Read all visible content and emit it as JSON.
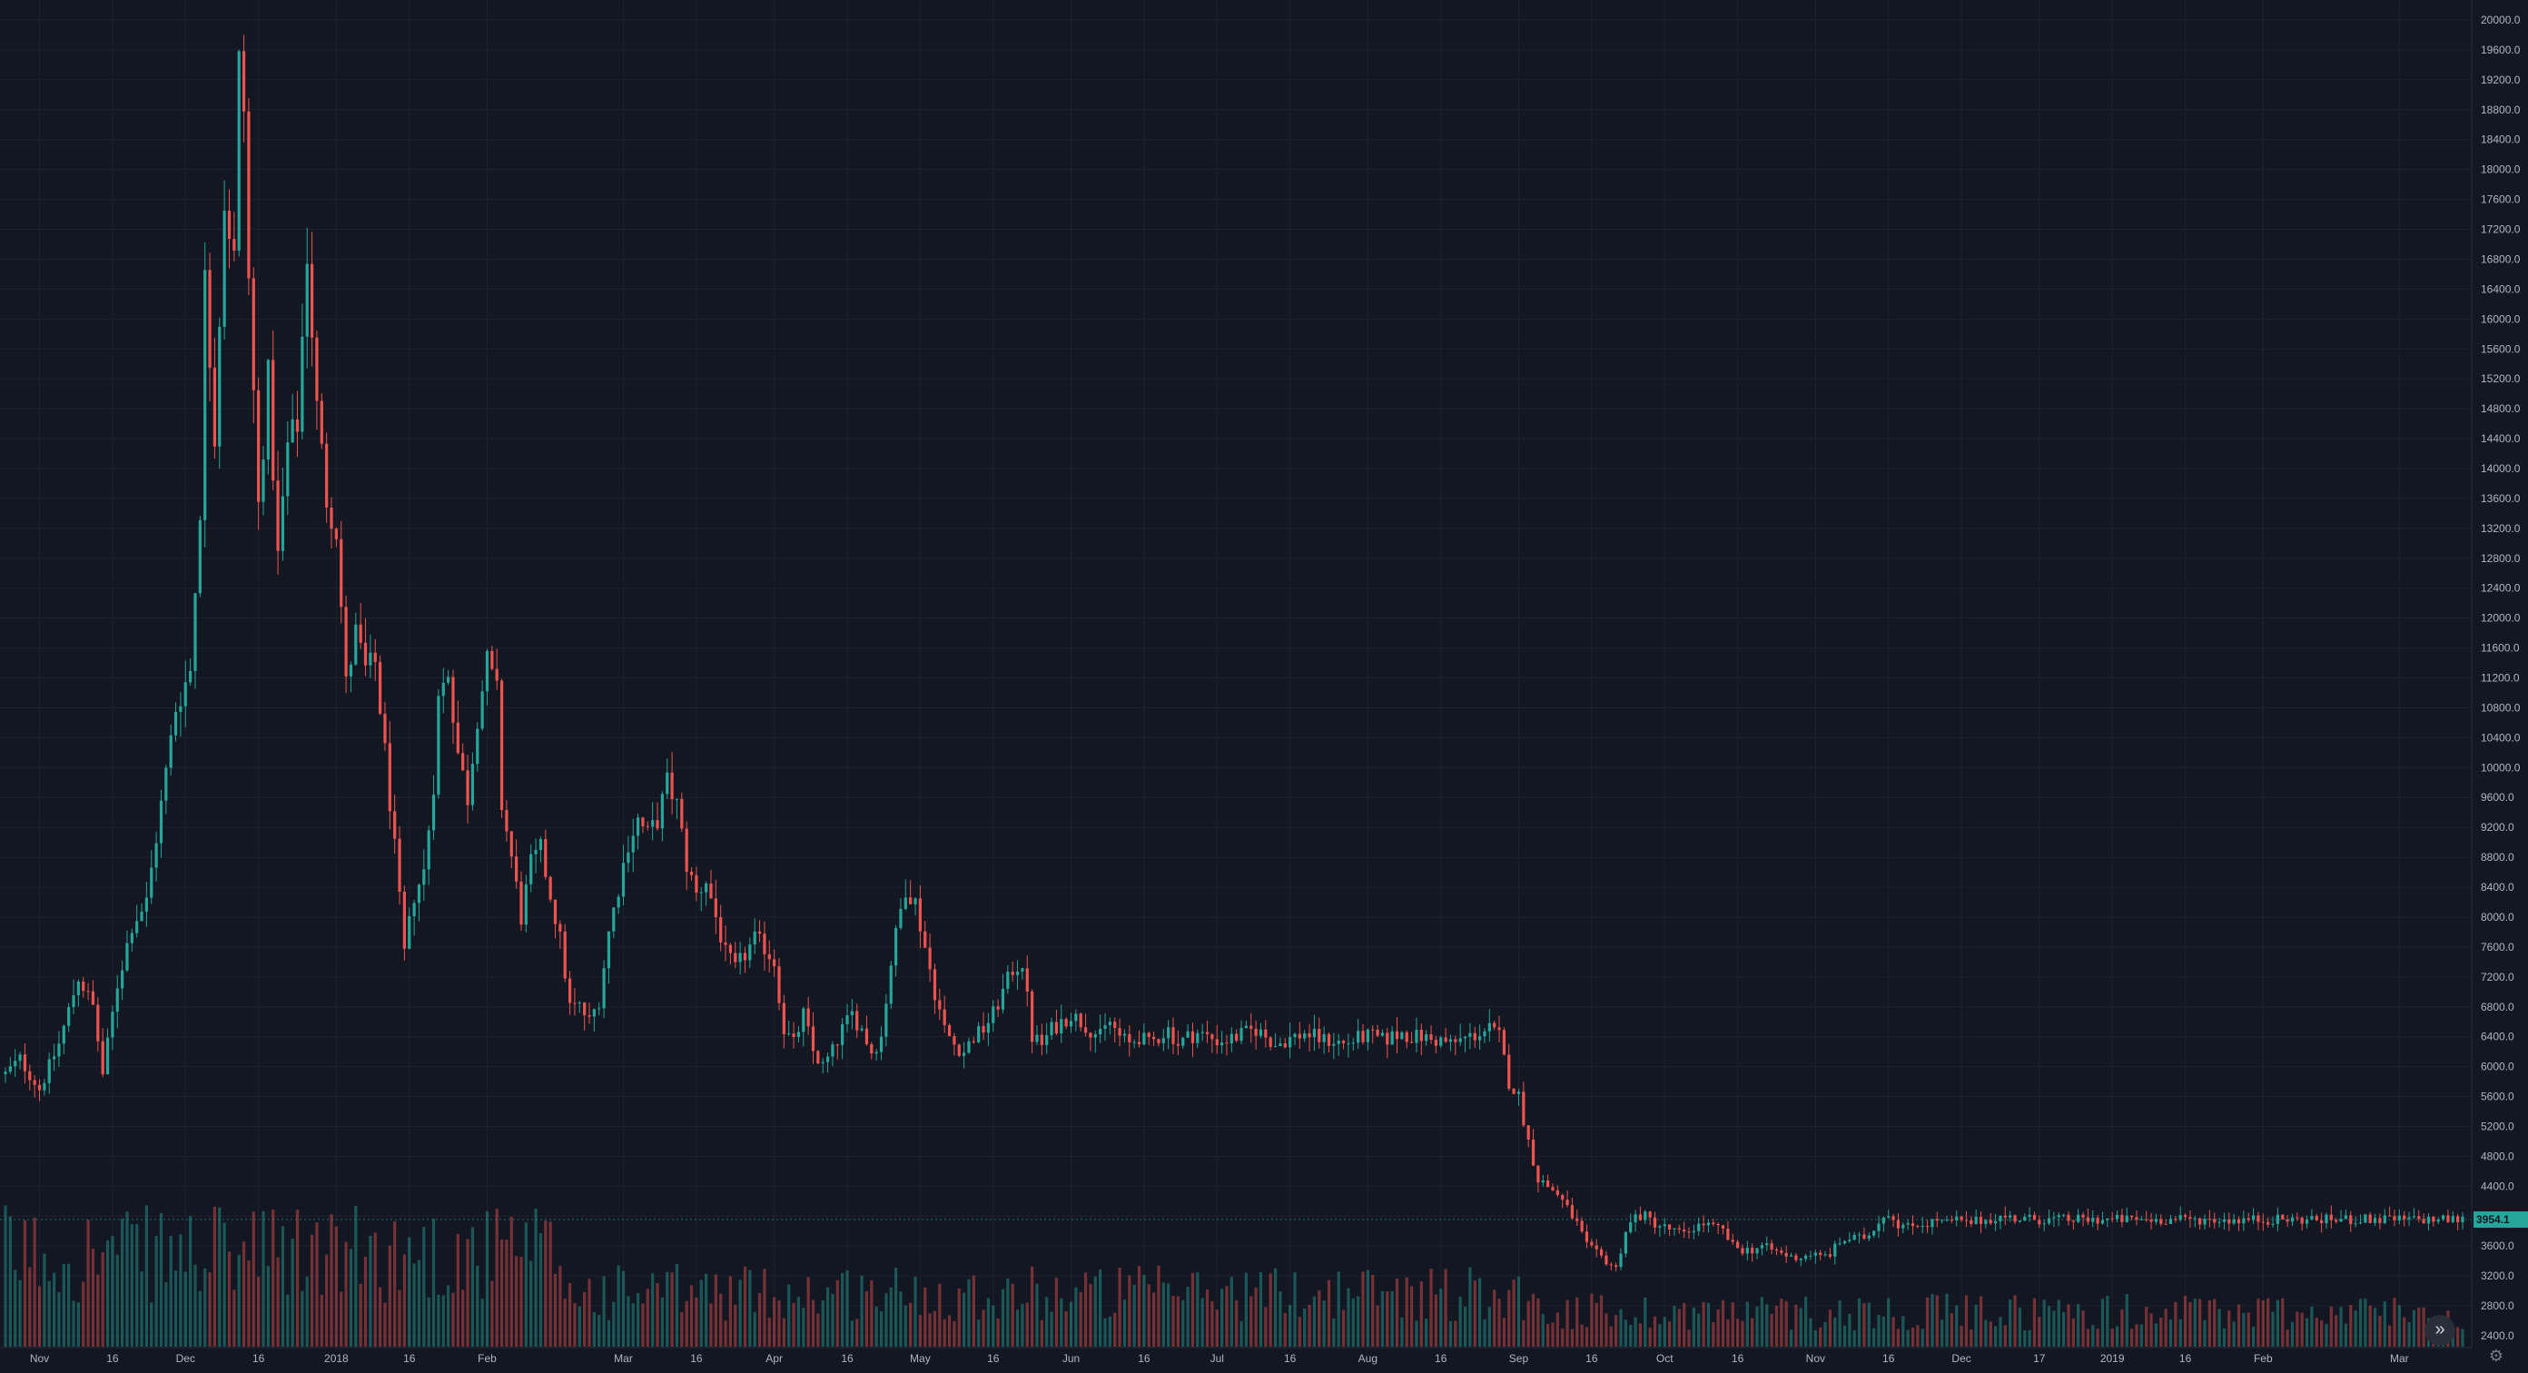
{
  "chart_data": {
    "type": "candlestick",
    "ylim": [
      2400,
      20000
    ],
    "y_ticks": [
      2400,
      2800,
      3200,
      3600,
      4000,
      4400,
      4800,
      5200,
      5600,
      6000,
      6400,
      6800,
      7200,
      7600,
      8000,
      8400,
      8800,
      9200,
      9600,
      10000,
      10400,
      10800,
      11200,
      11600,
      12000,
      12400,
      12800,
      13200,
      13600,
      14000,
      14400,
      14800,
      15200,
      15600,
      16000,
      16400,
      16800,
      17200,
      17600,
      18000,
      18400,
      18800,
      19200,
      19600,
      20000
    ],
    "x_ticks": [
      {
        "label": "Nov",
        "day": 22
      },
      {
        "label": "16",
        "day": 37
      },
      {
        "label": "Dec",
        "day": 52
      },
      {
        "label": "16",
        "day": 67
      },
      {
        "label": "2018",
        "day": 83
      },
      {
        "label": "16",
        "day": 98
      },
      {
        "label": "Feb",
        "day": 114
      },
      {
        "label": "Mar",
        "day": 142
      },
      {
        "label": "16",
        "day": 157
      },
      {
        "label": "Apr",
        "day": 173
      },
      {
        "label": "16",
        "day": 188
      },
      {
        "label": "May",
        "day": 203
      },
      {
        "label": "16",
        "day": 218
      },
      {
        "label": "Jun",
        "day": 234
      },
      {
        "label": "16",
        "day": 249
      },
      {
        "label": "Jul",
        "day": 264
      },
      {
        "label": "16",
        "day": 279
      },
      {
        "label": "Aug",
        "day": 295
      },
      {
        "label": "16",
        "day": 310
      },
      {
        "label": "Sep",
        "day": 326
      },
      {
        "label": "16",
        "day": 341
      },
      {
        "label": "Oct",
        "day": 356
      },
      {
        "label": "16",
        "day": 371
      },
      {
        "label": "Nov",
        "day": 387
      },
      {
        "label": "16",
        "day": 402
      },
      {
        "label": "Dec",
        "day": 417
      },
      {
        "label": "17",
        "day": 433
      },
      {
        "label": "2019",
        "day": 448
      },
      {
        "label": "16",
        "day": 463
      },
      {
        "label": "Feb",
        "day": 479
      },
      {
        "label": "Mar",
        "day": 507
      }
    ],
    "day_range": [
      15,
      520
    ],
    "anchors": [
      [
        15,
        5900
      ],
      [
        18,
        6100
      ],
      [
        22,
        5700
      ],
      [
        26,
        6300
      ],
      [
        30,
        7200
      ],
      [
        33,
        6800
      ],
      [
        35,
        5900
      ],
      [
        38,
        7100
      ],
      [
        41,
        7900
      ],
      [
        44,
        8200
      ],
      [
        47,
        9500
      ],
      [
        50,
        10800
      ],
      [
        53,
        11300
      ],
      [
        55,
        13500
      ],
      [
        56,
        16500
      ],
      [
        58,
        14500
      ],
      [
        60,
        17600
      ],
      [
        62,
        16800
      ],
      [
        63,
        19400
      ],
      [
        64,
        18800
      ],
      [
        65,
        16500
      ],
      [
        67,
        13500
      ],
      [
        69,
        15200
      ],
      [
        71,
        12800
      ],
      [
        73,
        14300
      ],
      [
        75,
        14600
      ],
      [
        77,
        16900
      ],
      [
        79,
        14800
      ],
      [
        81,
        13600
      ],
      [
        83,
        13200
      ],
      [
        85,
        11100
      ],
      [
        87,
        11800
      ],
      [
        89,
        11300
      ],
      [
        91,
        11400
      ],
      [
        93,
        10200
      ],
      [
        95,
        8900
      ],
      [
        97,
        7500
      ],
      [
        99,
        8300
      ],
      [
        101,
        8600
      ],
      [
        103,
        9800
      ],
      [
        104,
        10900
      ],
      [
        106,
        11300
      ],
      [
        108,
        10200
      ],
      [
        110,
        9600
      ],
      [
        112,
        10700
      ],
      [
        114,
        11400
      ],
      [
        116,
        11000
      ],
      [
        117,
        9500
      ],
      [
        119,
        8800
      ],
      [
        121,
        8000
      ],
      [
        123,
        8700
      ],
      [
        125,
        8900
      ],
      [
        127,
        8300
      ],
      [
        129,
        7700
      ],
      [
        131,
        6800
      ],
      [
        133,
        6800
      ],
      [
        135,
        6600
      ],
      [
        137,
        6900
      ],
      [
        139,
        7800
      ],
      [
        141,
        8400
      ],
      [
        143,
        9000
      ],
      [
        145,
        9300
      ],
      [
        147,
        9100
      ],
      [
        149,
        9300
      ],
      [
        151,
        9800
      ],
      [
        153,
        9500
      ],
      [
        155,
        8700
      ],
      [
        157,
        8300
      ],
      [
        159,
        8500
      ],
      [
        161,
        8000
      ],
      [
        163,
        7500
      ],
      [
        165,
        7300
      ],
      [
        167,
        7500
      ],
      [
        169,
        7700
      ],
      [
        171,
        7600
      ],
      [
        173,
        7400
      ],
      [
        175,
        6500
      ],
      [
        177,
        6300
      ],
      [
        179,
        6700
      ],
      [
        181,
        6200
      ],
      [
        183,
        6000
      ],
      [
        185,
        6200
      ],
      [
        187,
        6500
      ],
      [
        189,
        6700
      ],
      [
        191,
        6500
      ],
      [
        193,
        6200
      ],
      [
        195,
        6400
      ],
      [
        197,
        7400
      ],
      [
        199,
        8100
      ],
      [
        200,
        8400
      ],
      [
        202,
        8200
      ],
      [
        204,
        7600
      ],
      [
        206,
        7000
      ],
      [
        208,
        6500
      ],
      [
        210,
        6300
      ],
      [
        212,
        6200
      ],
      [
        214,
        6400
      ],
      [
        216,
        6500
      ],
      [
        218,
        6700
      ],
      [
        220,
        7000
      ],
      [
        222,
        7300
      ],
      [
        224,
        7400
      ],
      [
        226,
        6400
      ],
      [
        228,
        6300
      ],
      [
        230,
        6500
      ],
      [
        232,
        6600
      ],
      [
        234,
        6700
      ],
      [
        236,
        6600
      ],
      [
        238,
        6500
      ],
      [
        240,
        6400
      ],
      [
        242,
        6600
      ],
      [
        244,
        6400
      ],
      [
        246,
        6300
      ],
      [
        248,
        6400
      ],
      [
        250,
        6300
      ],
      [
        252,
        6400
      ],
      [
        254,
        6500
      ],
      [
        256,
        6300
      ],
      [
        258,
        6400
      ],
      [
        260,
        6450
      ],
      [
        262,
        6400
      ],
      [
        264,
        6350
      ],
      [
        266,
        6350
      ],
      [
        268,
        6400
      ],
      [
        270,
        6450
      ],
      [
        272,
        6500
      ],
      [
        274,
        6400
      ],
      [
        276,
        6300
      ],
      [
        278,
        6350
      ],
      [
        280,
        6400
      ],
      [
        282,
        6450
      ],
      [
        284,
        6400
      ],
      [
        286,
        6350
      ],
      [
        288,
        6350
      ],
      [
        290,
        6300
      ],
      [
        292,
        6350
      ],
      [
        294,
        6400
      ],
      [
        296,
        6400
      ],
      [
        298,
        6350
      ],
      [
        300,
        6400
      ],
      [
        302,
        6450
      ],
      [
        304,
        6400
      ],
      [
        306,
        6400
      ],
      [
        308,
        6350
      ],
      [
        310,
        6350
      ],
      [
        312,
        6300
      ],
      [
        314,
        6350
      ],
      [
        316,
        6400
      ],
      [
        318,
        6450
      ],
      [
        320,
        6500
      ],
      [
        322,
        6400
      ],
      [
        324,
        5800
      ],
      [
        326,
        5600
      ],
      [
        328,
        5000
      ],
      [
        330,
        4500
      ],
      [
        332,
        4400
      ],
      [
        334,
        4300
      ],
      [
        336,
        4100
      ],
      [
        338,
        3900
      ],
      [
        340,
        3600
      ],
      [
        342,
        3500
      ],
      [
        344,
        3400
      ],
      [
        346,
        3300
      ],
      [
        348,
        3800
      ],
      [
        350,
        4000
      ],
      [
        352,
        4000
      ],
      [
        354,
        3900
      ],
      [
        356,
        3850
      ],
      [
        358,
        3800
      ],
      [
        360,
        3750
      ],
      [
        362,
        3850
      ],
      [
        364,
        3900
      ],
      [
        366,
        3850
      ],
      [
        368,
        3800
      ],
      [
        370,
        3600
      ],
      [
        372,
        3550
      ],
      [
        374,
        3550
      ],
      [
        376,
        3600
      ],
      [
        378,
        3550
      ],
      [
        380,
        3500
      ],
      [
        382,
        3450
      ],
      [
        384,
        3450
      ],
      [
        386,
        3500
      ],
      [
        388,
        3450
      ],
      [
        390,
        3500
      ],
      [
        392,
        3650
      ],
      [
        394,
        3700
      ],
      [
        396,
        3700
      ],
      [
        398,
        3750
      ],
      [
        400,
        3950
      ],
      [
        402,
        4050
      ],
      [
        404,
        3900
      ],
      [
        406,
        3850
      ],
      [
        408,
        3900
      ],
      [
        410,
        3900
      ],
      [
        412,
        3950
      ],
      [
        414,
        3900
      ],
      [
        416,
        3950
      ],
      [
        418,
        3900
      ],
      [
        420,
        3930
      ],
      [
        422,
        3950
      ],
      [
        424,
        3980
      ],
      [
        426,
        3990
      ],
      [
        428,
        3970
      ],
      [
        430,
        3960
      ],
      [
        432,
        3960
      ],
      [
        434,
        3950
      ],
      [
        436,
        3955
      ],
      [
        438,
        3954
      ],
      [
        440,
        3954
      ],
      [
        442,
        3954
      ],
      [
        444,
        3954
      ],
      [
        446,
        3954
      ],
      [
        448,
        3954
      ],
      [
        450,
        3954
      ],
      [
        452,
        3954
      ],
      [
        454,
        3954
      ],
      [
        456,
        3954
      ],
      [
        458,
        3954
      ],
      [
        460,
        3954
      ],
      [
        462,
        3954
      ],
      [
        464,
        3954
      ],
      [
        466,
        3954
      ],
      [
        468,
        3954
      ],
      [
        470,
        3954
      ],
      [
        472,
        3954
      ],
      [
        474,
        3954
      ],
      [
        476,
        3954
      ],
      [
        478,
        3954
      ],
      [
        480,
        3954
      ],
      [
        482,
        3954
      ],
      [
        484,
        3954
      ],
      [
        486,
        3954
      ],
      [
        488,
        3954
      ],
      [
        490,
        3954
      ],
      [
        492,
        3954
      ],
      [
        494,
        3954
      ],
      [
        496,
        3954
      ],
      [
        498,
        3954
      ],
      [
        500,
        3954
      ],
      [
        502,
        3954
      ],
      [
        504,
        3954
      ],
      [
        506,
        3954
      ],
      [
        508,
        3954
      ],
      [
        510,
        3954
      ],
      [
        512,
        3954
      ],
      [
        514,
        3954
      ],
      [
        516,
        3954
      ],
      [
        518,
        3954
      ],
      [
        520,
        3954
      ]
    ],
    "last_price": 3954.1,
    "last_price_label": "3954.1",
    "up_color": "#26a69a",
    "down_color": "#ef5350",
    "grid": true
  },
  "controls": {
    "scroll_icon": "»",
    "settings_icon": "⚙"
  }
}
